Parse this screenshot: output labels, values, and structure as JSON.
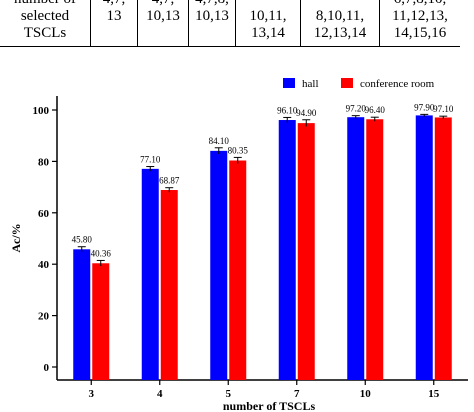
{
  "table": {
    "row_label": [
      "number of",
      "selected",
      "TSCLs"
    ],
    "cells": [
      [
        "4,7,",
        "13"
      ],
      [
        "4,7,",
        "10,13"
      ],
      [
        "4,7,8,",
        "10,13"
      ],
      [
        "",
        "10,11,",
        "13,14"
      ],
      [
        "",
        "8,10,11,",
        "12,13,14"
      ],
      [
        "6,7,8,10,",
        "11,12,13,",
        "14,15,16"
      ]
    ]
  },
  "chart_data": {
    "type": "bar",
    "categories": [
      "3",
      "4",
      "5",
      "7",
      "10",
      "15"
    ],
    "series": [
      {
        "name": "hall",
        "color": "#0000ff",
        "values": [
          45.8,
          77.1,
          84.1,
          96.1,
          97.2,
          97.9
        ],
        "labels": [
          "45.80",
          "77.10",
          "84.10",
          "96.10",
          "97.20",
          "97.90"
        ],
        "errors": [
          1.0,
          0.9,
          1.2,
          1.0,
          0.6,
          0.4
        ]
      },
      {
        "name": "conference room",
        "color": "#ff0000",
        "values": [
          40.36,
          68.87,
          80.35,
          94.9,
          96.4,
          97.1
        ],
        "labels": [
          "40.36",
          "68.87",
          "80.35",
          "94.90",
          "96.40",
          "97.10"
        ],
        "errors": [
          1.1,
          0.9,
          1.2,
          1.3,
          0.8,
          0.5
        ]
      }
    ],
    "xlabel": "number of TSCLs",
    "ylabel": "Ac/%",
    "ylim": [
      0,
      100
    ],
    "yticks": [
      "0",
      "20",
      "40",
      "60",
      "80",
      "100"
    ],
    "legend_position": "top-right",
    "grid": false
  }
}
